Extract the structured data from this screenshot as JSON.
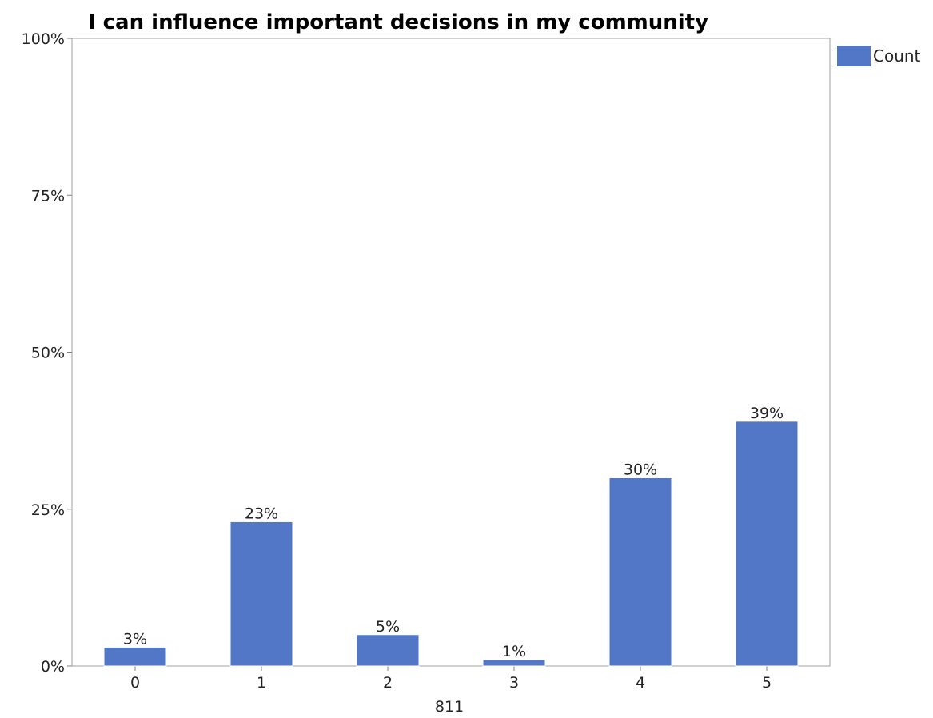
{
  "chart_data": {
    "type": "bar",
    "title": "I can influence important decisions in my community",
    "xlabel": "811",
    "ylabel": "",
    "categories": [
      "0",
      "1",
      "2",
      "3",
      "4",
      "5"
    ],
    "series": [
      {
        "name": "Count",
        "values": [
          0.03,
          0.23,
          0.05,
          0.01,
          0.3,
          0.39
        ],
        "labels": [
          "3%",
          "23%",
          "5%",
          "1%",
          "30%",
          "39%"
        ],
        "color": "#5177c6"
      }
    ],
    "ylim": [
      0,
      1
    ],
    "yticks": [
      {
        "value": 0,
        "label": "0%"
      },
      {
        "value": 0.25,
        "label": "25%"
      },
      {
        "value": 0.5,
        "label": "50%"
      },
      {
        "value": 0.75,
        "label": "75%"
      },
      {
        "value": 1,
        "label": "100%"
      }
    ],
    "grid": false,
    "legend_position": "top-right"
  }
}
